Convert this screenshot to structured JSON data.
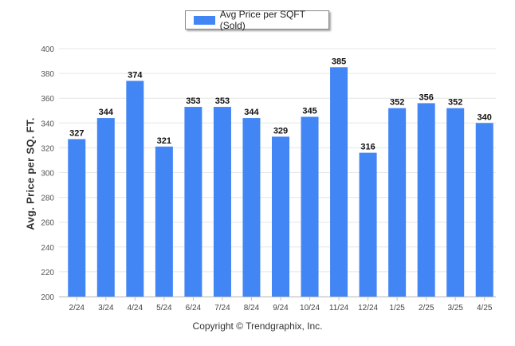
{
  "chart_data": {
    "type": "bar",
    "categories": [
      "2/24",
      "3/24",
      "4/24",
      "5/24",
      "6/24",
      "7/24",
      "8/24",
      "9/24",
      "10/24",
      "11/24",
      "12/24",
      "1/25",
      "2/25",
      "3/25",
      "4/25"
    ],
    "series": [
      {
        "name": "Avg Price per SQFT (Sold)",
        "values": [
          327,
          344,
          374,
          321,
          353,
          353,
          344,
          329,
          345,
          385,
          316,
          352,
          356,
          352,
          340
        ]
      }
    ],
    "xlabel": "",
    "ylabel": "Avg. Price per SQ. FT.",
    "ylim": [
      200,
      400
    ],
    "yticks": [
      200,
      220,
      240,
      260,
      280,
      300,
      320,
      340,
      360,
      380,
      400
    ],
    "grid": true,
    "legend_position": "top-center",
    "bar_color": "#4285f4",
    "data_labels": true
  },
  "footer": "Copyright © Trendgraphix, Inc."
}
